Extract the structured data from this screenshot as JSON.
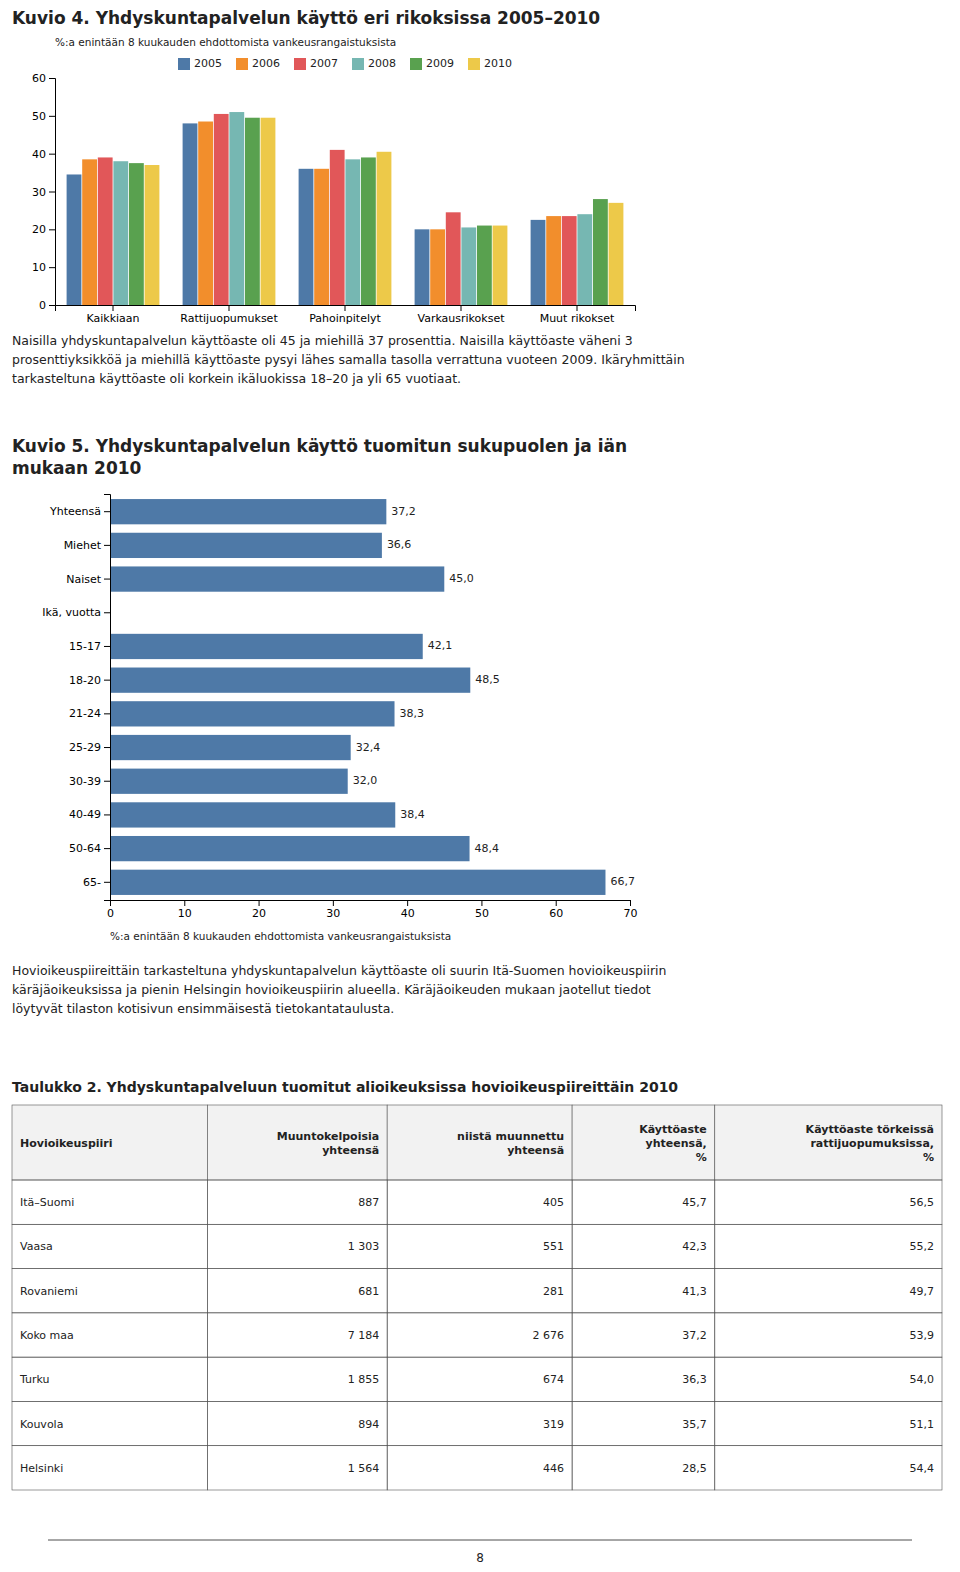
{
  "chart_data": [
    {
      "type": "bar",
      "title": "Kuvio 4. Yhdyskuntapalvelun käyttö eri rikoksissa 2005–2010",
      "y_label": "%:a enintään 8 kuukauden ehdottomista vankeusrangaistuksista",
      "categories": [
        "Kaikkiaan",
        "Rattijuopumukset",
        "Pahoinpitelyt",
        "Varkausrikokset",
        "Muut rikokset"
      ],
      "series": [
        {
          "name": "2005",
          "values": [
            34.5,
            48.0,
            36.0,
            20.0,
            22.5
          ]
        },
        {
          "name": "2006",
          "values": [
            38.5,
            48.5,
            36.0,
            20.0,
            23.5
          ]
        },
        {
          "name": "2007",
          "values": [
            39.0,
            50.5,
            41.0,
            24.5,
            23.5
          ]
        },
        {
          "name": "2008",
          "values": [
            38.0,
            51.0,
            38.5,
            20.5,
            24.0
          ]
        },
        {
          "name": "2009",
          "values": [
            37.5,
            49.5,
            39.0,
            21.0,
            28.0
          ]
        },
        {
          "name": "2010",
          "values": [
            37.0,
            49.5,
            40.5,
            21.0,
            27.0
          ]
        }
      ],
      "ylim": [
        0,
        60
      ],
      "yticks": [
        0,
        10,
        20,
        30,
        40,
        50,
        60
      ],
      "grid": false,
      "legend": "top"
    },
    {
      "type": "bar",
      "orientation": "horizontal",
      "title": "Kuvio 5. Yhdyskuntapalvelun käyttö tuomitun sukupuolen ja iän\nmukaan 2010",
      "x_label": "%:a enintään 8 kuukauden ehdottomista vankeusrangaistuksista",
      "categories": [
        "Yhteensä",
        "Miehet",
        "Naiset",
        "Ikä, vuotta",
        "15-17",
        "18-20",
        "21-24",
        "25-29",
        "30-39",
        "40-49",
        "50-64",
        "65-"
      ],
      "values": [
        37.2,
        36.6,
        45.0,
        null,
        42.1,
        48.5,
        38.3,
        32.4,
        32.0,
        38.4,
        48.4,
        66.7
      ],
      "value_labels": [
        "37,2",
        "36,6",
        "45,0",
        null,
        "42,1",
        "48,5",
        "38,3",
        "32,4",
        "32,0",
        "38,4",
        "48,4",
        "66,7"
      ],
      "data_labels": true,
      "xlim": [
        0,
        70
      ],
      "xticks": [
        0,
        10,
        20,
        30,
        40,
        50,
        60,
        70
      ],
      "grid": false
    }
  ],
  "paragraphs": [
    "Naisilla yhdyskuntapalvelun käyttöaste oli 45 ja miehillä 37 prosenttia. Naisilla käyttöaste väheni 3\nprosenttiyksikköä ja miehillä käyttöaste pysyi lähes samalla tasolla verrattuna vuoteen 2009. Ikäryhmittäin\ntarkasteltuna käyttöaste oli korkein ikäluokissa 18–20 ja yli 65 vuotiaat.",
    "Hovioikeuspiireittäin tarkasteltuna yhdyskuntapalvelun käyttöaste oli suurin Itä-Suomen hovioikeuspiirin\nkäräjäoikeuksissa ja pienin Helsingin hovioikeuspiirin alueella. Käräjäoikeuden mukaan jaotellut tiedot\nlöytyvät tilaston kotisivun ensimmäisestä tietokantataulusta."
  ],
  "table": {
    "title": "Taulukko 2. Yhdyskuntapalveluun tuomitut alioikeuksissa hovioikeuspiireittäin 2010",
    "headers": [
      "Hovioikeuspiiri",
      "Muuntokelpoisia\nyhteensä",
      "niistä muunnettu\nyhteensä",
      "Käyttöaste\nyhteensä,\n%",
      "Käyttöaste törkeissä\nrattijuopumuksissa,\n%"
    ],
    "rows": [
      [
        "Itä–Suomi",
        "887",
        "405",
        "45,7",
        "56,5"
      ],
      [
        "Vaasa",
        "1 303",
        "551",
        "42,3",
        "55,2"
      ],
      [
        "Rovaniemi",
        "681",
        "281",
        "41,3",
        "49,7"
      ],
      [
        "Koko maa",
        "7 184",
        "2 676",
        "37,2",
        "53,9"
      ],
      [
        "Turku",
        "1 855",
        "674",
        "36,3",
        "54,0"
      ],
      [
        "Kouvola",
        "894",
        "319",
        "35,7",
        "51,1"
      ],
      [
        "Helsinki",
        "1 564",
        "446",
        "28,5",
        "54,4"
      ]
    ]
  },
  "page_number": "8"
}
